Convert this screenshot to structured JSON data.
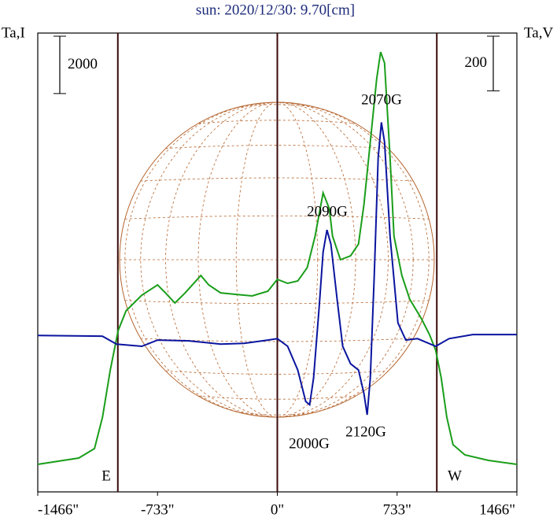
{
  "chart_data": {
    "type": "line",
    "title": "sun: 2020/12/30: 9.70[cm]",
    "y_label": "Ta,I",
    "y2_label": "Ta,V",
    "xlim": [
      -1466,
      1466
    ],
    "xticks": [
      {
        "value": -1466,
        "label": "-1466\""
      },
      {
        "value": -733,
        "label": "-733\""
      },
      {
        "value": 0,
        "label": "0\""
      },
      {
        "value": 733,
        "label": "733\""
      },
      {
        "value": 1466,
        "label": "1466\""
      }
    ],
    "ylim": [
      0,
      16000
    ],
    "y2lim": [
      -570,
      1110
    ],
    "scale_bars": [
      {
        "value": 2000,
        "axis": "y"
      },
      {
        "value": 200,
        "axis": "y2"
      }
    ],
    "xlines": [
      -976,
      0,
      976
    ],
    "grid": false,
    "series": [
      {
        "color": "#1a9e1a",
        "x": [
          -1466,
          -1215,
          -1119,
          -1070,
          -1022,
          -974,
          -926,
          -829,
          -733,
          -685,
          -627,
          -564,
          -468,
          -420,
          -347,
          -251,
          -154,
          -58,
          0,
          63,
          125,
          183,
          231,
          280,
          318,
          338,
          386,
          448,
          497,
          530,
          569,
          608,
          632,
          656,
          690,
          714,
          762,
          810,
          882,
          931,
          969,
          1003,
          1037,
          1075,
          1148,
          1292,
          1466
        ],
        "values": [
          960,
          1180,
          1509,
          2607,
          4253,
          5625,
          6311,
          6860,
          7217,
          6942,
          6586,
          6942,
          7546,
          7217,
          6942,
          6887,
          6833,
          6997,
          7409,
          7272,
          7354,
          7820,
          8918,
          10427,
          9878,
          8918,
          8095,
          8232,
          8644,
          10016,
          12211,
          14406,
          15339,
          14955,
          11662,
          8918,
          7546,
          6723,
          6037,
          5488,
          4939,
          3979,
          2607,
          1646,
          1290,
          1098,
          960
        ]
      },
      {
        "color": "#0a149e",
        "axis": "y2",
        "x": [
          -1466,
          -1070,
          -984,
          -829,
          -733,
          -540,
          -347,
          -203,
          -58,
          0,
          63,
          125,
          174,
          198,
          222,
          256,
          280,
          304,
          328,
          366,
          400,
          448,
          497,
          530,
          550,
          569,
          593,
          617,
          637,
          656,
          690,
          738,
          786,
          858,
          969,
          1051,
          1196,
          1466
        ],
        "values": [
          3,
          0,
          -29,
          -37,
          -14,
          -17,
          -29,
          -26,
          -14,
          -9,
          -37,
          -124,
          -239,
          -251,
          -153,
          107,
          308,
          389,
          337,
          135,
          -37,
          -101,
          -124,
          -210,
          -288,
          -153,
          222,
          654,
          783,
          711,
          366,
          49,
          -14,
          -9,
          -37,
          -9,
          6,
          6
        ]
      }
    ],
    "annotations": [
      "2070G",
      "2090G",
      "2000G",
      "2120G",
      "E",
      "W"
    ]
  }
}
